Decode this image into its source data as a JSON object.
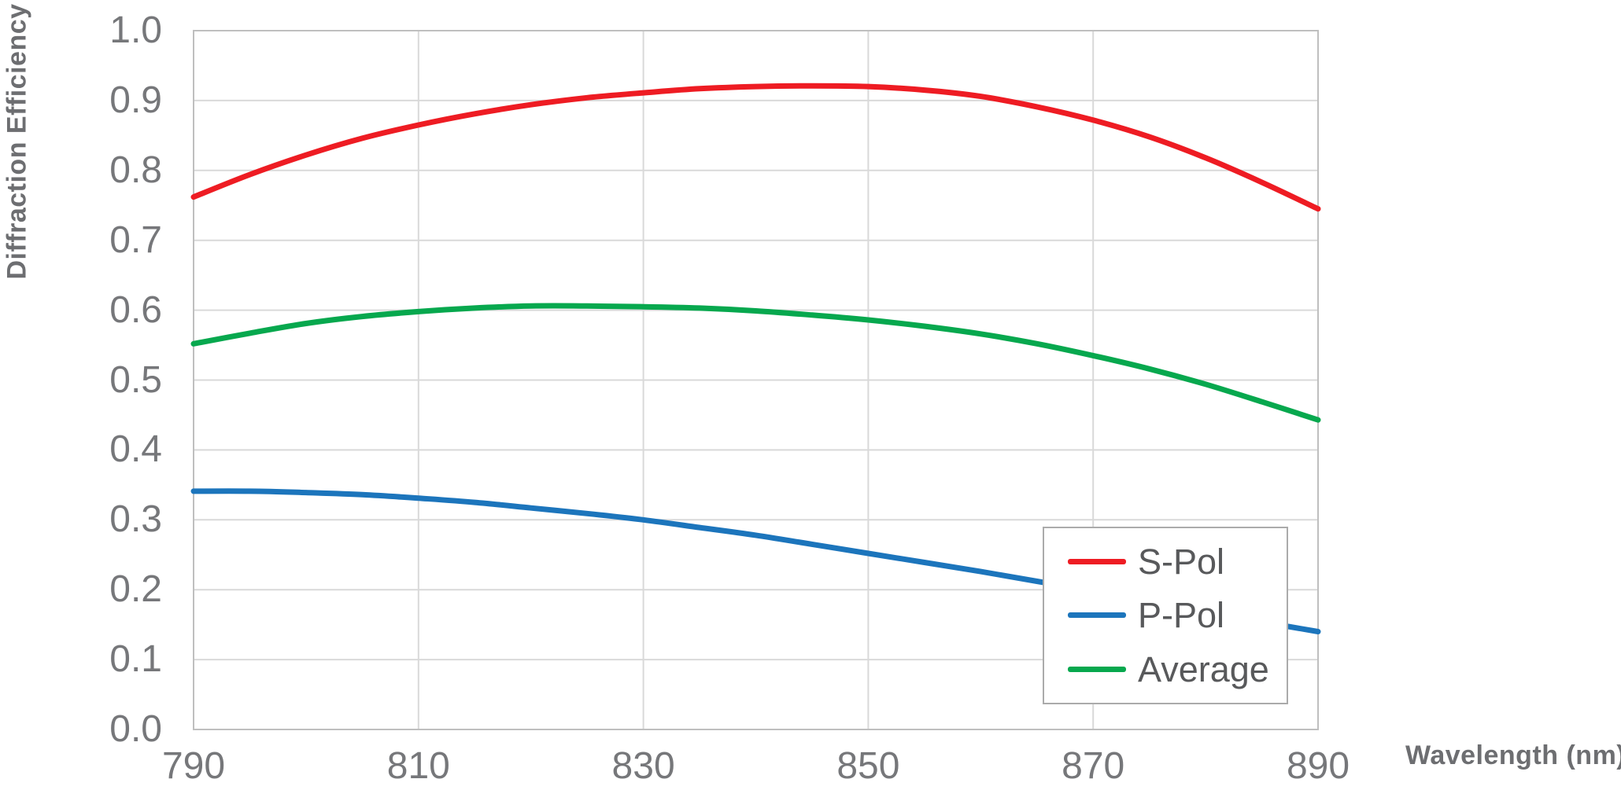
{
  "chart_data": {
    "type": "line",
    "title": "",
    "xlabel": "Wavelength (nm)",
    "ylabel": "Diffraction Efficiency",
    "xlim": [
      790,
      890
    ],
    "ylim": [
      0.0,
      1.0
    ],
    "grid": true,
    "legend_position": "inside-bottom-right",
    "x_tick_labels": [
      "790",
      "810",
      "830",
      "850",
      "870",
      "890"
    ],
    "y_tick_labels": [
      "1.0",
      "0.9",
      "0.8",
      "0.7",
      "0.6",
      "0.5",
      "0.4",
      "0.3",
      "0.2",
      "0.1",
      "0.0"
    ],
    "x": [
      790,
      795,
      800,
      805,
      810,
      815,
      820,
      825,
      830,
      835,
      840,
      845,
      850,
      855,
      860,
      865,
      870,
      875,
      880,
      885,
      890
    ],
    "series": [
      {
        "name": "S-Pol",
        "color": "#EE1C23",
        "values": [
          0.762,
          0.794,
          0.822,
          0.846,
          0.865,
          0.881,
          0.894,
          0.904,
          0.911,
          0.917,
          0.92,
          0.921,
          0.92,
          0.915,
          0.906,
          0.891,
          0.872,
          0.848,
          0.818,
          0.783,
          0.745
        ]
      },
      {
        "name": "P-Pol",
        "color": "#1C75BC",
        "values": [
          0.341,
          0.341,
          0.339,
          0.336,
          0.331,
          0.325,
          0.317,
          0.309,
          0.3,
          0.289,
          0.278,
          0.265,
          0.252,
          0.239,
          0.226,
          0.212,
          0.198,
          0.183,
          0.169,
          0.154,
          0.14
        ]
      },
      {
        "name": "Average",
        "color": "#07A84E",
        "values": [
          0.552,
          0.567,
          0.581,
          0.591,
          0.598,
          0.603,
          0.606,
          0.606,
          0.605,
          0.603,
          0.599,
          0.593,
          0.586,
          0.577,
          0.566,
          0.552,
          0.535,
          0.516,
          0.494,
          0.469,
          0.443
        ]
      }
    ]
  },
  "colors": {
    "background": "#FFFFFF",
    "grid_line": "#D9D9D9",
    "axis_border": "#BFBFBF",
    "tick_text": "#76777A",
    "axis_title_text": "#6D6E71",
    "legend_text": "#58595B",
    "legend_border": "#ABABAB"
  }
}
